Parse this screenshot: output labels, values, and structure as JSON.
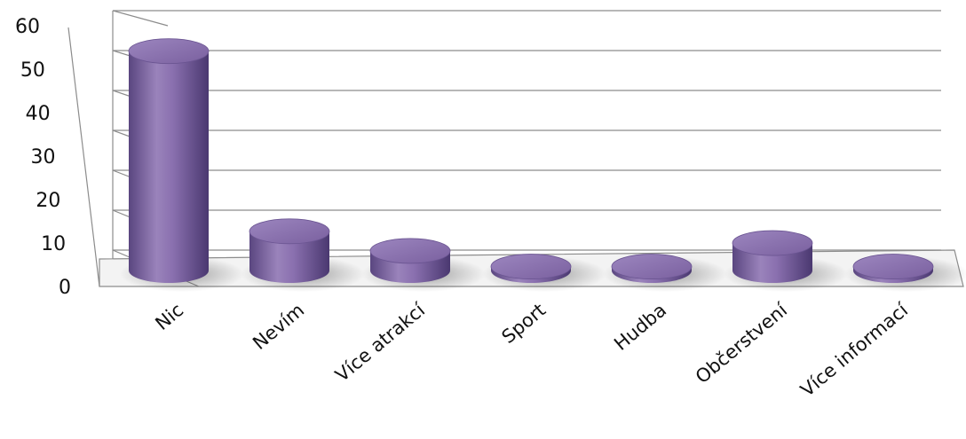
{
  "chart_data": {
    "type": "bar",
    "style": "3d-cylinder",
    "categories": [
      "Nic",
      "Nevím",
      "Více atrakcí",
      "Sport",
      "Hudba",
      "Občerstvení",
      "Více informací"
    ],
    "series": [
      {
        "values": [
          56,
          10,
          5,
          1,
          1,
          7,
          1
        ]
      }
    ],
    "y_ticks": [
      "0",
      "10",
      "20",
      "30",
      "40",
      "50",
      "60"
    ],
    "ylim": [
      0,
      60
    ],
    "grid": true,
    "legend": "none",
    "colors": {
      "bar": "#8064a2",
      "bar_dark": "#4e3a70",
      "bar_light": "#a993c6",
      "grid": "#8c8c8c"
    }
  }
}
